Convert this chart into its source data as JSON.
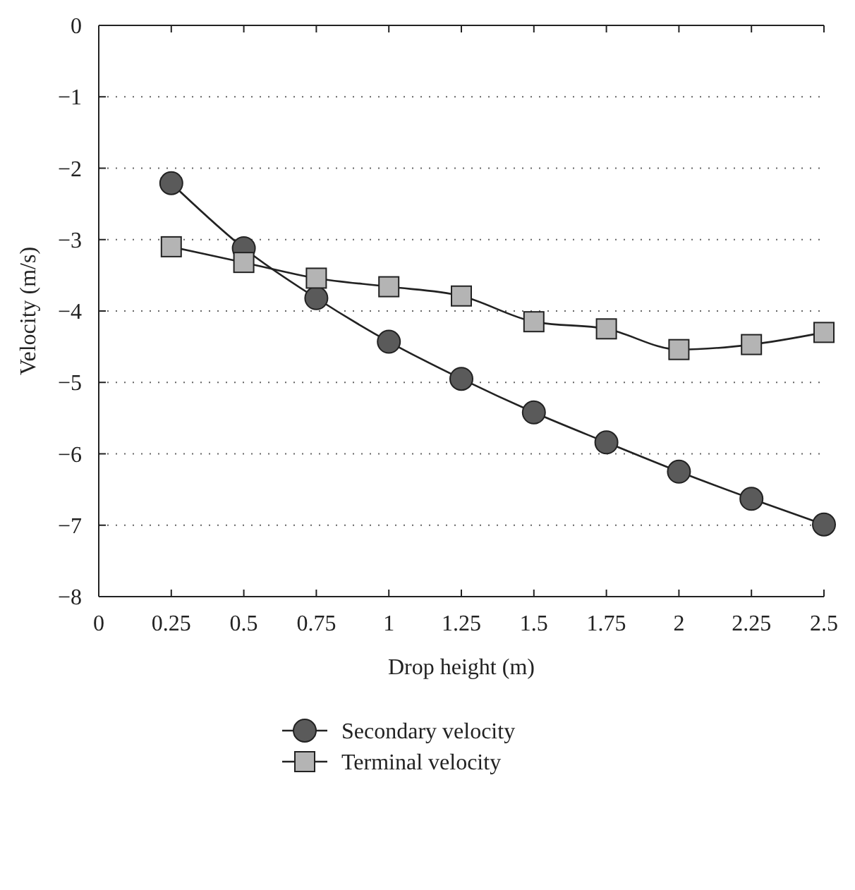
{
  "chart_data": {
    "type": "line",
    "xlabel": "Drop height (m)",
    "ylabel": "Velocity (m/s)",
    "x": [
      0.25,
      0.5,
      0.75,
      1,
      1.25,
      1.5,
      1.75,
      2,
      2.25,
      2.5
    ],
    "xlim": [
      0,
      2.5
    ],
    "xticks": [
      0,
      0.25,
      0.5,
      0.75,
      1,
      1.25,
      1.5,
      1.75,
      2,
      2.25,
      2.5
    ],
    "ylim": [
      -8,
      0
    ],
    "yticks": [
      {
        "value": -8,
        "label": "−8"
      },
      {
        "value": -7,
        "label": "−7"
      },
      {
        "value": -6,
        "label": "−6"
      },
      {
        "value": -5,
        "label": "−5"
      },
      {
        "value": -4,
        "label": "−4"
      },
      {
        "value": -3,
        "label": "−3"
      },
      {
        "value": -2,
        "label": "−2"
      },
      {
        "value": -1,
        "label": "−1"
      },
      0
    ],
    "grid": "y",
    "legend": "bottom",
    "line_style": "solid",
    "series": [
      {
        "name": "Secondary velocity",
        "color": "#5a5a5a",
        "marker": "circle",
        "values": [
          -2.21,
          -3.12,
          -3.82,
          -4.43,
          -4.95,
          -5.42,
          -5.84,
          -6.25,
          -6.63,
          -6.99
        ]
      },
      {
        "name": "Terminal velocity",
        "color": "#b4b4b4",
        "marker": "square",
        "values": [
          -3.1,
          -3.32,
          -3.54,
          -3.66,
          -3.79,
          -4.15,
          -4.25,
          -4.54,
          -4.47,
          -4.3
        ]
      }
    ]
  }
}
